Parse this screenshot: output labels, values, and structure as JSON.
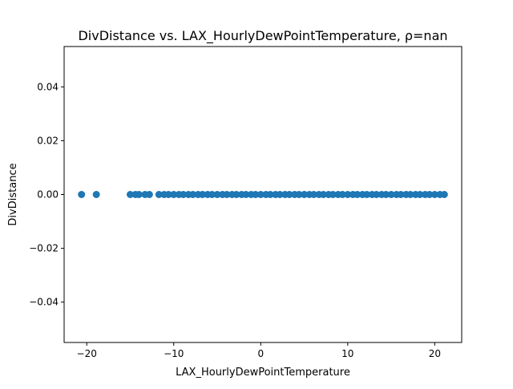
{
  "chart_data": {
    "type": "scatter",
    "title": "DivDistance vs. LAX_HourlyDewPointTemperature, ρ=nan",
    "xlabel": "LAX_HourlyDewPointTemperature",
    "ylabel": "DivDistance",
    "xlim": [
      -22.6,
      23.1
    ],
    "ylim": [
      -0.055,
      0.055
    ],
    "xticks": [
      -20,
      -10,
      0,
      10,
      20
    ],
    "xtick_labels": [
      "−20",
      "−10",
      "0",
      "10",
      "20"
    ],
    "yticks": [
      -0.04,
      -0.02,
      0.0,
      0.02,
      0.04
    ],
    "ytick_labels": [
      "−0.04",
      "−0.02",
      "0.00",
      "0.02",
      "0.04"
    ],
    "grid": false,
    "marker_color": "#1f77b4",
    "series": [
      {
        "x": [
          -20.6,
          -18.9,
          -15.0,
          -14.4,
          -14.0,
          -13.3,
          -12.8,
          -11.7,
          -11.1,
          -10.6,
          -10.0,
          -9.4,
          -8.9,
          -8.3,
          -7.8,
          -7.2,
          -6.7,
          -6.1,
          -5.6,
          -5.0,
          -4.4,
          -3.9,
          -3.3,
          -2.8,
          -2.2,
          -1.7,
          -1.1,
          -0.6,
          0.0,
          0.6,
          1.1,
          1.7,
          2.2,
          2.8,
          3.3,
          3.9,
          4.4,
          5.0,
          5.6,
          6.1,
          6.7,
          7.2,
          7.8,
          8.3,
          8.9,
          9.4,
          10.0,
          10.6,
          11.1,
          11.7,
          12.2,
          12.8,
          13.3,
          13.9,
          14.4,
          15.0,
          15.6,
          16.1,
          16.7,
          17.2,
          17.8,
          18.3,
          18.9,
          19.4,
          20.0,
          20.6,
          21.1
        ],
        "y": [
          0,
          0,
          0,
          0,
          0,
          0,
          0,
          0,
          0,
          0,
          0,
          0,
          0,
          0,
          0,
          0,
          0,
          0,
          0,
          0,
          0,
          0,
          0,
          0,
          0,
          0,
          0,
          0,
          0,
          0,
          0,
          0,
          0,
          0,
          0,
          0,
          0,
          0,
          0,
          0,
          0,
          0,
          0,
          0,
          0,
          0,
          0,
          0,
          0,
          0,
          0,
          0,
          0,
          0,
          0,
          0,
          0,
          0,
          0,
          0,
          0,
          0,
          0,
          0,
          0,
          0,
          0
        ]
      }
    ]
  }
}
